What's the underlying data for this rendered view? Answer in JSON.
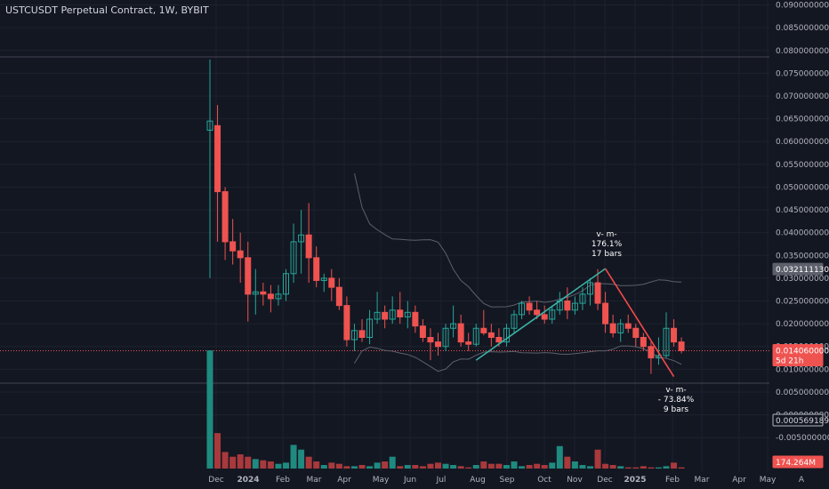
{
  "header": {
    "title": "USTCUSDT Perpetual Contract, 1W, BYBIT"
  },
  "colors": {
    "background": "#131722",
    "up": "#26a69a",
    "down": "#ef5350",
    "up_volume": "#1f8a7f",
    "down_volume": "#a8393c",
    "band": "#5d606b",
    "trend_up": "#3bb3a6",
    "trend_down": "#f24a4a"
  },
  "chart_data": {
    "type": "candlestick",
    "symbol": "USTCUSDT",
    "interval": "1W",
    "exchange": "BYBIT",
    "x_labels": [
      "Dec",
      "2024",
      "Feb",
      "Mar",
      "Apr",
      "May",
      "Jun",
      "Jul",
      "Aug",
      "Sep",
      "Oct",
      "Nov",
      "Dec",
      "2025",
      "Feb",
      "Mar",
      "Apr",
      "May"
    ],
    "y_ticks": [
      "0.0900000000",
      "0.0850000000",
      "0.0800000000",
      "0.0750000000",
      "0.0700000000",
      "0.0650000000",
      "0.0600000000",
      "0.0550000000",
      "0.0500000000",
      "0.0450000000",
      "0.0400000000",
      "0.0350000000",
      "0.0300000000",
      "0.0250000000",
      "0.0200000000",
      "0.0150000000",
      "0.0100000000",
      "0.0050000000",
      "0.0000000000",
      "-0.0050000000"
    ],
    "ylim": [
      -0.0075,
      0.0905
    ],
    "last_price": "0.01406000000",
    "countdown": "5d 21h",
    "upper_band_value": "0.0321111306",
    "volume_indicator_value": "0.0005691895",
    "volume_last": "174.264M",
    "candles": [
      {
        "o": 0.0625,
        "h": 0.078,
        "l": 0.03,
        "c": 0.0645
      },
      {
        "o": 0.0635,
        "h": 0.068,
        "l": 0.038,
        "c": 0.049
      },
      {
        "o": 0.049,
        "h": 0.05,
        "l": 0.034,
        "c": 0.038
      },
      {
        "o": 0.038,
        "h": 0.043,
        "l": 0.033,
        "c": 0.036
      },
      {
        "o": 0.036,
        "h": 0.04,
        "l": 0.029,
        "c": 0.0345
      },
      {
        "o": 0.0345,
        "h": 0.038,
        "l": 0.0205,
        "c": 0.0265
      },
      {
        "o": 0.0265,
        "h": 0.032,
        "l": 0.022,
        "c": 0.027
      },
      {
        "o": 0.027,
        "h": 0.029,
        "l": 0.024,
        "c": 0.0265
      },
      {
        "o": 0.0265,
        "h": 0.0285,
        "l": 0.0225,
        "c": 0.0255
      },
      {
        "o": 0.0255,
        "h": 0.0285,
        "l": 0.024,
        "c": 0.0265
      },
      {
        "o": 0.0265,
        "h": 0.032,
        "l": 0.025,
        "c": 0.031
      },
      {
        "o": 0.031,
        "h": 0.042,
        "l": 0.029,
        "c": 0.038
      },
      {
        "o": 0.038,
        "h": 0.045,
        "l": 0.031,
        "c": 0.0395
      },
      {
        "o": 0.0395,
        "h": 0.0465,
        "l": 0.029,
        "c": 0.0345
      },
      {
        "o": 0.0345,
        "h": 0.037,
        "l": 0.028,
        "c": 0.0295
      },
      {
        "o": 0.0295,
        "h": 0.031,
        "l": 0.027,
        "c": 0.03
      },
      {
        "o": 0.03,
        "h": 0.032,
        "l": 0.025,
        "c": 0.028
      },
      {
        "o": 0.028,
        "h": 0.03,
        "l": 0.023,
        "c": 0.024
      },
      {
        "o": 0.024,
        "h": 0.026,
        "l": 0.015,
        "c": 0.0165
      },
      {
        "o": 0.0165,
        "h": 0.02,
        "l": 0.014,
        "c": 0.0185
      },
      {
        "o": 0.0185,
        "h": 0.021,
        "l": 0.016,
        "c": 0.017
      },
      {
        "o": 0.017,
        "h": 0.023,
        "l": 0.0155,
        "c": 0.021
      },
      {
        "o": 0.021,
        "h": 0.027,
        "l": 0.02,
        "c": 0.0225
      },
      {
        "o": 0.0225,
        "h": 0.024,
        "l": 0.019,
        "c": 0.021
      },
      {
        "o": 0.021,
        "h": 0.026,
        "l": 0.02,
        "c": 0.023
      },
      {
        "o": 0.023,
        "h": 0.027,
        "l": 0.02,
        "c": 0.0215
      },
      {
        "o": 0.0215,
        "h": 0.025,
        "l": 0.019,
        "c": 0.0225
      },
      {
        "o": 0.0225,
        "h": 0.024,
        "l": 0.018,
        "c": 0.0195
      },
      {
        "o": 0.0195,
        "h": 0.021,
        "l": 0.016,
        "c": 0.017
      },
      {
        "o": 0.017,
        "h": 0.019,
        "l": 0.012,
        "c": 0.016
      },
      {
        "o": 0.016,
        "h": 0.018,
        "l": 0.013,
        "c": 0.015
      },
      {
        "o": 0.015,
        "h": 0.02,
        "l": 0.014,
        "c": 0.019
      },
      {
        "o": 0.019,
        "h": 0.024,
        "l": 0.017,
        "c": 0.02
      },
      {
        "o": 0.02,
        "h": 0.022,
        "l": 0.015,
        "c": 0.016
      },
      {
        "o": 0.016,
        "h": 0.018,
        "l": 0.014,
        "c": 0.0155
      },
      {
        "o": 0.0155,
        "h": 0.02,
        "l": 0.015,
        "c": 0.019
      },
      {
        "o": 0.019,
        "h": 0.023,
        "l": 0.0175,
        "c": 0.018
      },
      {
        "o": 0.018,
        "h": 0.02,
        "l": 0.015,
        "c": 0.017
      },
      {
        "o": 0.017,
        "h": 0.019,
        "l": 0.015,
        "c": 0.016
      },
      {
        "o": 0.016,
        "h": 0.02,
        "l": 0.015,
        "c": 0.019
      },
      {
        "o": 0.019,
        "h": 0.023,
        "l": 0.018,
        "c": 0.022
      },
      {
        "o": 0.022,
        "h": 0.025,
        "l": 0.021,
        "c": 0.0245
      },
      {
        "o": 0.0245,
        "h": 0.026,
        "l": 0.022,
        "c": 0.023
      },
      {
        "o": 0.023,
        "h": 0.025,
        "l": 0.021,
        "c": 0.022
      },
      {
        "o": 0.022,
        "h": 0.024,
        "l": 0.02,
        "c": 0.021
      },
      {
        "o": 0.021,
        "h": 0.024,
        "l": 0.02,
        "c": 0.023
      },
      {
        "o": 0.023,
        "h": 0.027,
        "l": 0.022,
        "c": 0.025
      },
      {
        "o": 0.025,
        "h": 0.028,
        "l": 0.021,
        "c": 0.023
      },
      {
        "o": 0.023,
        "h": 0.026,
        "l": 0.022,
        "c": 0.0245
      },
      {
        "o": 0.0245,
        "h": 0.028,
        "l": 0.023,
        "c": 0.0265
      },
      {
        "o": 0.0265,
        "h": 0.03,
        "l": 0.024,
        "c": 0.029
      },
      {
        "o": 0.029,
        "h": 0.032,
        "l": 0.023,
        "c": 0.0245
      },
      {
        "o": 0.0245,
        "h": 0.027,
        "l": 0.018,
        "c": 0.02
      },
      {
        "o": 0.02,
        "h": 0.022,
        "l": 0.017,
        "c": 0.018
      },
      {
        "o": 0.018,
        "h": 0.021,
        "l": 0.016,
        "c": 0.02
      },
      {
        "o": 0.02,
        "h": 0.022,
        "l": 0.018,
        "c": 0.019
      },
      {
        "o": 0.019,
        "h": 0.02,
        "l": 0.015,
        "c": 0.017
      },
      {
        "o": 0.017,
        "h": 0.018,
        "l": 0.014,
        "c": 0.015
      },
      {
        "o": 0.015,
        "h": 0.016,
        "l": 0.009,
        "c": 0.0125
      },
      {
        "o": 0.0125,
        "h": 0.017,
        "l": 0.011,
        "c": 0.013
      },
      {
        "o": 0.013,
        "h": 0.0225,
        "l": 0.0125,
        "c": 0.019
      },
      {
        "o": 0.019,
        "h": 0.021,
        "l": 0.015,
        "c": 0.016
      },
      {
        "o": 0.016,
        "h": 0.017,
        "l": 0.0135,
        "c": 0.0141
      }
    ],
    "volume": [
      1.0,
      0.3,
      0.14,
      0.1,
      0.12,
      0.1,
      0.08,
      0.07,
      0.06,
      0.04,
      0.05,
      0.2,
      0.16,
      0.1,
      0.06,
      0.03,
      0.05,
      0.04,
      0.02,
      0.02,
      0.03,
      0.02,
      0.05,
      0.06,
      0.1,
      0.02,
      0.03,
      0.03,
      0.02,
      0.04,
      0.05,
      0.04,
      0.03,
      0.02,
      0.01,
      0.03,
      0.06,
      0.04,
      0.04,
      0.03,
      0.06,
      0.02,
      0.03,
      0.04,
      0.03,
      0.05,
      0.19,
      0.1,
      0.06,
      0.03,
      0.02,
      0.16,
      0.04,
      0.03,
      0.02,
      0.01,
      0.01,
      0.02,
      0.01,
      0.01,
      0.02,
      0.05,
      0.01
    ],
    "annotations": [
      {
        "lines": [
          "v- m-",
          "176.1%",
          "17 bars"
        ]
      },
      {
        "lines": [
          "v- m-",
          "- 73.84%",
          "9 bars"
        ]
      }
    ]
  }
}
